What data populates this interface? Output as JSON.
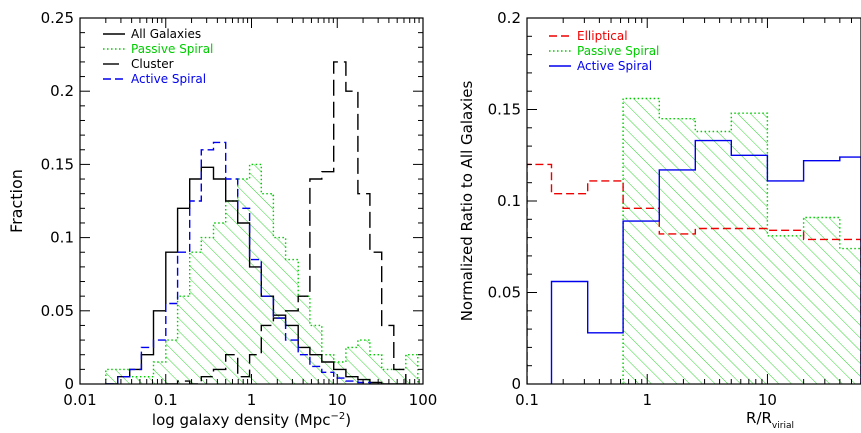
{
  "chart_data": [
    {
      "type": "histogram",
      "xlabel": "log galaxy density (Mpc",
      "xlabel_sup": "−2",
      "xlabel_close": ")",
      "ylabel": "Fraction",
      "xscale": "log",
      "xlim": [
        0.01,
        100
      ],
      "ylim": [
        0,
        0.25
      ],
      "xticks": [
        {
          "value": 0.01,
          "label": "0.01"
        },
        {
          "value": 0.1,
          "label": "0.1"
        },
        {
          "value": 1,
          "label": "1"
        },
        {
          "value": 10,
          "label": "10"
        },
        {
          "value": 100,
          "label": "100"
        }
      ],
      "yticks": [
        {
          "value": 0,
          "label": "0"
        },
        {
          "value": 0.05,
          "label": "0.05"
        },
        {
          "value": 0.1,
          "label": "0.1"
        },
        {
          "value": 0.15,
          "label": "0.15"
        },
        {
          "value": 0.2,
          "label": "0.2"
        },
        {
          "value": 0.25,
          "label": "0.25"
        }
      ],
      "legend_position": "top-left",
      "series": [
        {
          "name": "All Galaxies",
          "style": "solid",
          "color": "#000000",
          "edges": [
            0.02,
            0.0275,
            0.038,
            0.052,
            0.072,
            0.1,
            0.1375,
            0.19,
            0.26,
            0.36,
            0.5,
            0.69,
            0.95,
            1.3,
            1.8,
            2.5,
            3.5,
            4.8,
            6.6,
            9.1,
            12.6,
            17.4,
            24,
            33,
            45.6,
            63
          ],
          "values": [
            0,
            0.005,
            0.01,
            0.02,
            0.05,
            0.09,
            0.12,
            0.14,
            0.148,
            0.14,
            0.125,
            0.11,
            0.08,
            0.06,
            0.047,
            0.04,
            0.025,
            0.02,
            0.015,
            0.01,
            0.005,
            0.003,
            0.001,
            0,
            0
          ]
        },
        {
          "name": "Passive Spiral",
          "style": "dotted",
          "color": "#00cc00",
          "hatch": true,
          "edges": [
            0.02,
            0.0275,
            0.038,
            0.052,
            0.072,
            0.1,
            0.1375,
            0.19,
            0.26,
            0.36,
            0.5,
            0.69,
            0.95,
            1.3,
            1.8,
            2.5,
            3.5,
            4.8,
            6.6,
            9.1,
            12.6,
            17.4,
            24,
            33,
            45.6,
            63,
            87
          ],
          "values": [
            0.01,
            0.01,
            0.005,
            0.005,
            0.015,
            0.03,
            0.06,
            0.09,
            0.1,
            0.11,
            0.125,
            0.14,
            0.15,
            0.13,
            0.1,
            0.085,
            0.06,
            0.04,
            0.02,
            0.015,
            0.025,
            0.03,
            0.02,
            0.01,
            0.01,
            0.02
          ]
        },
        {
          "name": "Cluster",
          "style": "longdash",
          "color": "#000000",
          "edges": [
            0.1,
            0.1375,
            0.19,
            0.26,
            0.36,
            0.5,
            0.69,
            0.95,
            1.3,
            1.8,
            2.5,
            3.5,
            4.8,
            6.6,
            9.1,
            12.6,
            17.4,
            24,
            33,
            45.6,
            63
          ],
          "values": [
            0,
            0.002,
            0,
            0.005,
            0.01,
            0.02,
            0.005,
            0.02,
            0.04,
            0.045,
            0.05,
            0.06,
            0.14,
            0.145,
            0.22,
            0.2,
            0.13,
            0.09,
            0.04,
            0.01
          ]
        },
        {
          "name": "Active Spiral",
          "style": "dashed",
          "color": "#0000ee",
          "edges": [
            0.02,
            0.0275,
            0.038,
            0.052,
            0.072,
            0.1,
            0.1375,
            0.19,
            0.26,
            0.36,
            0.5,
            0.69,
            0.95,
            1.3,
            1.8,
            2.5,
            3.5,
            4.8,
            6.6,
            9.1,
            12.6,
            17.4,
            24
          ],
          "values": [
            0,
            0.005,
            0.01,
            0.025,
            0.03,
            0.055,
            0.09,
            0.125,
            0.16,
            0.165,
            0.14,
            0.12,
            0.085,
            0.06,
            0.045,
            0.03,
            0.02,
            0.012,
            0.008,
            0.004,
            0.002,
            0.001
          ]
        }
      ]
    },
    {
      "type": "histogram",
      "xlabel": "R/R",
      "xlabel_sub": "virial",
      "ylabel": "Normalized Ratio to All Galaxies",
      "xscale": "log",
      "xlim": [
        0.1,
        60
      ],
      "ylim": [
        0,
        0.2
      ],
      "xticks": [
        {
          "value": 0.1,
          "label": "0.1"
        },
        {
          "value": 1,
          "label": "1"
        },
        {
          "value": 10,
          "label": "10"
        }
      ],
      "yticks": [
        {
          "value": 0,
          "label": "0"
        },
        {
          "value": 0.05,
          "label": "0.05"
        },
        {
          "value": 0.1,
          "label": "0.1"
        },
        {
          "value": 0.15,
          "label": "0.15"
        },
        {
          "value": 0.2,
          "label": "0.2"
        }
      ],
      "legend_position": "top-left",
      "series": [
        {
          "name": "Elliptical",
          "style": "dashed",
          "color": "#ee0000",
          "edges": [
            0.1,
            0.16,
            0.32,
            0.63,
            1.26,
            2.51,
            5,
            10,
            20,
            40,
            60
          ],
          "values": [
            0.12,
            0.104,
            0.111,
            0.096,
            0.082,
            0.085,
            0.085,
            0.084,
            0.079,
            0.079
          ]
        },
        {
          "name": "Passive Spiral",
          "style": "dotted",
          "color": "#00cc00",
          "hatch": true,
          "edges": [
            0.63,
            1.26,
            2.51,
            5,
            10,
            20,
            40,
            60
          ],
          "values": [
            0.156,
            0.145,
            0.138,
            0.148,
            0.081,
            0.091,
            0.074
          ]
        },
        {
          "name": "Active Spiral",
          "style": "solid",
          "color": "#0000ee",
          "edges": [
            0.16,
            0.32,
            0.63,
            1.26,
            2.51,
            5,
            10,
            20,
            40,
            60
          ],
          "values": [
            0.056,
            0.028,
            0.089,
            0.117,
            0.133,
            0.125,
            0.111,
            0.122,
            0.124
          ]
        }
      ]
    }
  ]
}
